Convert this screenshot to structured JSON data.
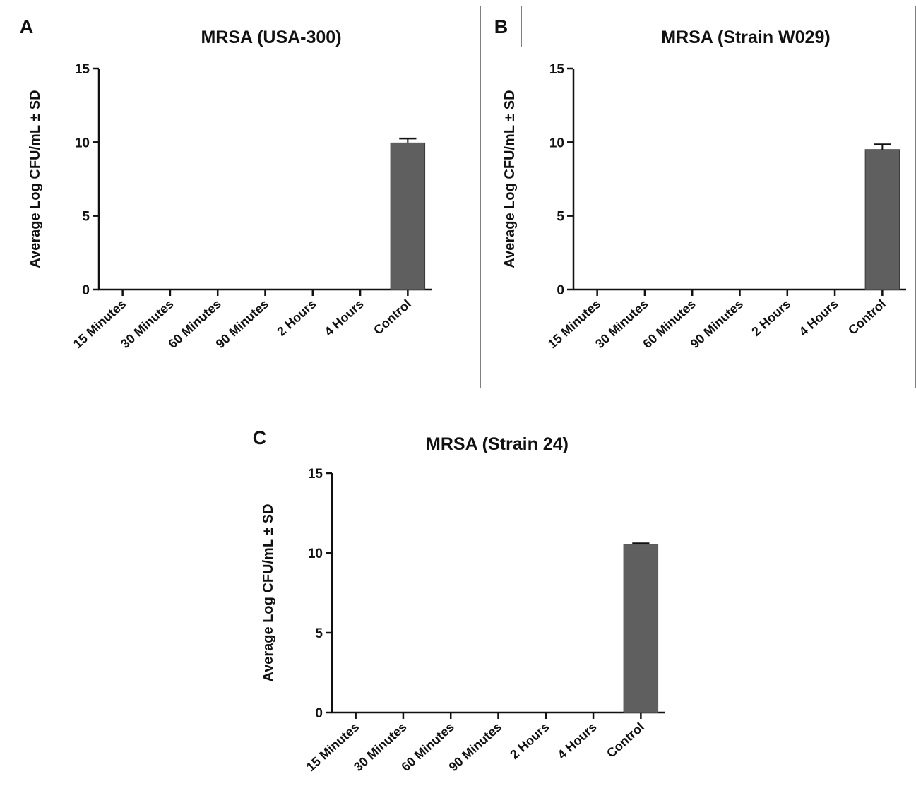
{
  "panels": [
    {
      "letter": "A"
    },
    {
      "letter": "B"
    },
    {
      "letter": "C"
    }
  ],
  "chart_data": [
    {
      "type": "bar",
      "title": "MRSA (USA-300)",
      "xlabel": "",
      "ylabel": "Average Log CFU/mL ± SD",
      "categories": [
        "15 Minutes",
        "30 Minutes",
        "60 Minutes",
        "90 Minutes",
        "2 Hours",
        "4 Hours",
        "Control"
      ],
      "values": [
        0,
        0,
        0,
        0,
        0,
        0,
        9.95
      ],
      "error": [
        0,
        0,
        0,
        0,
        0,
        0,
        0.3
      ],
      "ylim": [
        0,
        15
      ],
      "yticks": [
        "0",
        "5",
        "10",
        "15"
      ],
      "bar_color": "#5f5f5f",
      "grid": false,
      "legend": "none"
    },
    {
      "type": "bar",
      "title": "MRSA (Strain W029)",
      "xlabel": "",
      "ylabel": "Average Log CFU/mL ± SD",
      "categories": [
        "15 Minutes",
        "30 Minutes",
        "60 Minutes",
        "90 Minutes",
        "2 Hours",
        "4 Hours",
        "Control"
      ],
      "values": [
        0,
        0,
        0,
        0,
        0,
        0,
        9.5
      ],
      "error": [
        0,
        0,
        0,
        0,
        0,
        0,
        0.35
      ],
      "ylim": [
        0,
        15
      ],
      "yticks": [
        "0",
        "5",
        "10",
        "15"
      ],
      "bar_color": "#5f5f5f",
      "grid": false,
      "legend": "none"
    },
    {
      "type": "bar",
      "title": "MRSA (Strain 24)",
      "xlabel": "",
      "ylabel": "Average Log CFU/mL ± SD",
      "categories": [
        "15 Minutes",
        "30 Minutes",
        "60 Minutes",
        "90 Minutes",
        "2 Hours",
        "4 Hours",
        "Control"
      ],
      "values": [
        0,
        0,
        0,
        0,
        0,
        0,
        10.55
      ],
      "error": [
        0,
        0,
        0,
        0,
        0,
        0,
        0.05
      ],
      "ylim": [
        0,
        15
      ],
      "yticks": [
        "0",
        "5",
        "10",
        "15"
      ],
      "bar_color": "#5f5f5f",
      "grid": false,
      "legend": "none"
    }
  ]
}
